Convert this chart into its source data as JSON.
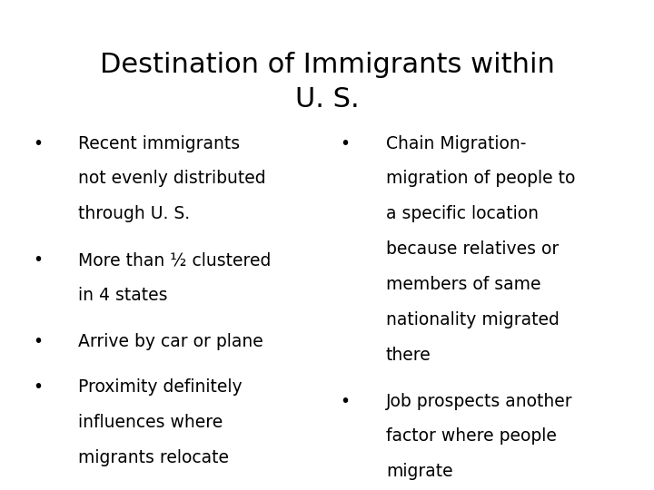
{
  "title_line1": "Destination of Immigrants within",
  "title_line2": "U. S.",
  "background_color": "#ffffff",
  "text_color": "#000000",
  "title_fontsize": 22,
  "body_fontsize": 13.5,
  "left_bullets": [
    [
      "Recent immigrants",
      "not evenly distributed",
      "through U. S."
    ],
    [
      "More than ½ clustered",
      "in 4 states"
    ],
    [
      "Arrive by car or plane"
    ],
    [
      "Proximity definitely",
      "influences where",
      "migrants relocate"
    ]
  ],
  "right_bullets": [
    [
      "Chain Migration-",
      "migration of people to",
      "a specific location",
      "because relatives or",
      "members of same",
      "nationality migrated",
      "there"
    ],
    [
      "Job prospects another",
      "factor where people",
      "migrate"
    ]
  ],
  "bullet_char": "•"
}
